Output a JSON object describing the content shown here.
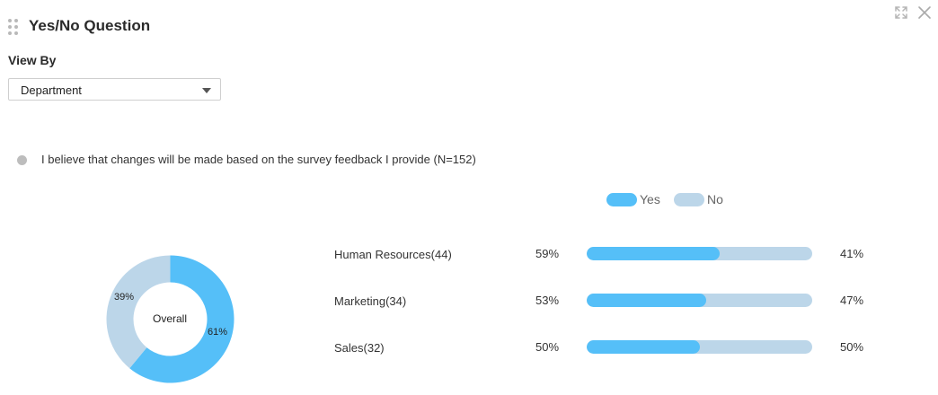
{
  "header": {
    "title": "Yes/No Question",
    "icons": [
      "drag-handle-icon",
      "expand-icon",
      "close-icon"
    ]
  },
  "view_by": {
    "label": "View By",
    "selected": "Department"
  },
  "question": {
    "text": "I believe that changes will be made based on the survey feedback I provide (N=152)"
  },
  "legend": {
    "yes": "Yes",
    "no": "No"
  },
  "colors": {
    "yes": "#55bff8",
    "no": "#bcd6e9"
  },
  "overall": {
    "center_label": "Overall",
    "yes_label": "61%",
    "no_label": "39%",
    "yes_pct": 61,
    "no_pct": 39
  },
  "chart_data": {
    "type": "bar",
    "categories": [
      "Human Resources(44)",
      "Marketing(34)",
      "Sales(32)"
    ],
    "series": [
      {
        "name": "Yes",
        "values": [
          59,
          53,
          50
        ]
      },
      {
        "name": "No",
        "values": [
          41,
          47,
          50
        ]
      }
    ],
    "labels": {
      "yes": [
        "59%",
        "53%",
        "50%"
      ],
      "no": [
        "41%",
        "47%",
        "50%"
      ]
    }
  }
}
